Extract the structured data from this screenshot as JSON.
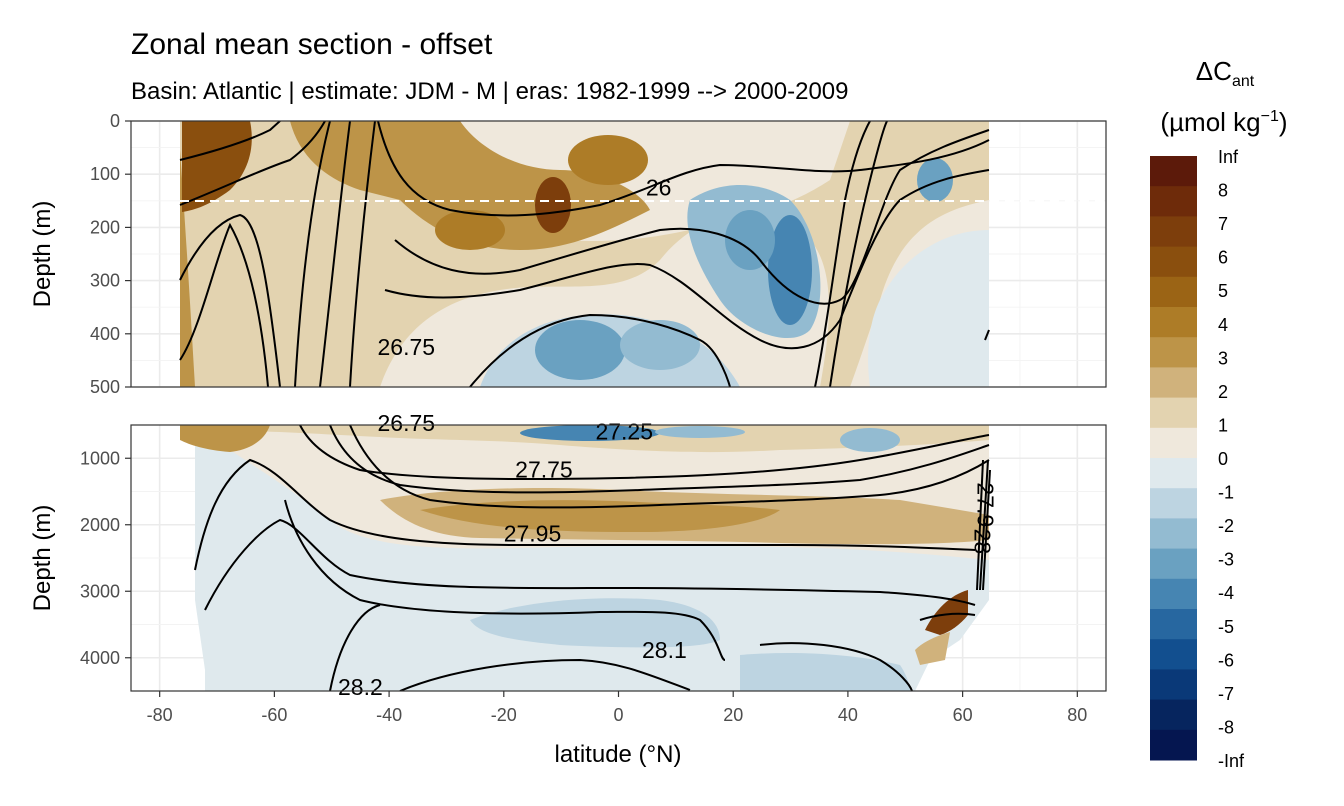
{
  "chart_data": {
    "type": "heatmap",
    "title": "Zonal mean section - offset",
    "subtitle": "Basin: Atlantic | estimate: JDM - M | eras: 1982-1999 --> 2000-2009",
    "xlabel": "latitude (°N)",
    "xlim": [
      -85,
      85
    ],
    "x_ticks": [
      -80,
      -60,
      -40,
      -20,
      0,
      20,
      40,
      60,
      80
    ],
    "panels": [
      {
        "ylabel": "Depth (m)",
        "ylim": [
          0,
          500
        ],
        "y_ticks": [
          0,
          100,
          200,
          300,
          400,
          500
        ],
        "reference_line_depth": 150,
        "contour_labels": [
          {
            "text": "26",
            "lat": 7,
            "depth": 125
          },
          {
            "text": "26.75",
            "lat": -37,
            "depth": 425
          }
        ]
      },
      {
        "ylabel": "Depth (m)",
        "ylim": [
          500,
          4500
        ],
        "y_ticks": [
          1000,
          2000,
          3000,
          4000
        ],
        "contour_labels": [
          {
            "text": "26.75",
            "lat": -37,
            "depth": 470
          },
          {
            "text": "27.25",
            "lat": 1,
            "depth": 600
          },
          {
            "text": "27.75",
            "lat": -13,
            "depth": 1170
          },
          {
            "text": "27.95",
            "lat": -15,
            "depth": 2130
          },
          {
            "text": "28.1",
            "lat": 8,
            "depth": 3880
          },
          {
            "text": "28.2",
            "lat": -45,
            "depth": 4440
          },
          {
            "text": "28",
            "lat": 63.5,
            "depth": 2250
          },
          {
            "text": "27.9",
            "lat": 64,
            "depth": 1700
          }
        ]
      }
    ],
    "legend": {
      "title_main": "ΔC",
      "title_sub": "ant",
      "units_pre": "(µmol kg",
      "units_sup": "−1",
      "units_post": ")",
      "placement": "right",
      "labels": [
        "Inf",
        "8",
        "7",
        "6",
        "5",
        "4",
        "3",
        "2",
        "1",
        "0",
        "-1",
        "-2",
        "-3",
        "-4",
        "-5",
        "-6",
        "-7",
        "-8",
        "-Inf"
      ],
      "colors": [
        "#5c1a0a",
        "#6e2b0a",
        "#7d3e0c",
        "#8a4f0e",
        "#9b6415",
        "#ad7c27",
        "#bd9448",
        "#d0b27c",
        "#e3d3b0",
        "#efe8dc",
        "#dfe9ed",
        "#bdd4e1",
        "#93bbd1",
        "#6aa1c1",
        "#4685b2",
        "#2767a0",
        "#124f8f",
        "#0a3978",
        "#06255e",
        "#051650"
      ]
    }
  }
}
